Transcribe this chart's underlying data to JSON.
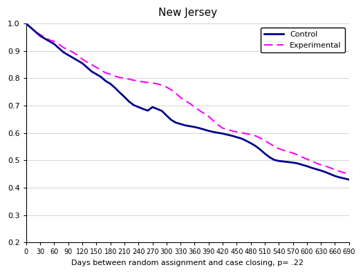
{
  "title": "New Jersey",
  "xlabel": "Days between random assignment and case closing, p= .22",
  "xlim": [
    0,
    690
  ],
  "ylim": [
    0.2,
    1.0
  ],
  "xticks": [
    0,
    30,
    60,
    90,
    120,
    150,
    180,
    210,
    240,
    270,
    300,
    330,
    360,
    390,
    420,
    450,
    480,
    510,
    540,
    570,
    600,
    630,
    660,
    690
  ],
  "yticks": [
    0.2,
    0.3,
    0.4,
    0.5,
    0.6,
    0.7,
    0.8,
    0.9,
    1.0
  ],
  "control_color": "#00008B",
  "experimental_color": "#FF00FF",
  "control_x": [
    0,
    10,
    20,
    30,
    40,
    50,
    60,
    70,
    80,
    90,
    100,
    110,
    120,
    130,
    140,
    150,
    160,
    170,
    180,
    190,
    200,
    210,
    220,
    230,
    240,
    250,
    260,
    270,
    280,
    290,
    300,
    310,
    320,
    330,
    340,
    350,
    360,
    370,
    380,
    390,
    400,
    410,
    420,
    430,
    440,
    450,
    460,
    470,
    480,
    490,
    500,
    510,
    520,
    530,
    540,
    550,
    560,
    570,
    580,
    590,
    600,
    610,
    620,
    630,
    640,
    650,
    660,
    670,
    680,
    690
  ],
  "control_y": [
    1.0,
    0.985,
    0.97,
    0.955,
    0.945,
    0.935,
    0.925,
    0.91,
    0.895,
    0.885,
    0.875,
    0.865,
    0.855,
    0.84,
    0.825,
    0.815,
    0.805,
    0.79,
    0.78,
    0.765,
    0.748,
    0.732,
    0.715,
    0.702,
    0.695,
    0.688,
    0.682,
    0.695,
    0.688,
    0.681,
    0.664,
    0.648,
    0.638,
    0.633,
    0.628,
    0.625,
    0.622,
    0.618,
    0.613,
    0.608,
    0.604,
    0.601,
    0.598,
    0.594,
    0.59,
    0.585,
    0.58,
    0.572,
    0.563,
    0.553,
    0.54,
    0.525,
    0.512,
    0.502,
    0.498,
    0.496,
    0.494,
    0.492,
    0.489,
    0.484,
    0.479,
    0.473,
    0.468,
    0.463,
    0.457,
    0.45,
    0.443,
    0.438,
    0.434,
    0.43
  ],
  "experimental_x": [
    0,
    10,
    20,
    30,
    40,
    50,
    60,
    70,
    80,
    90,
    100,
    110,
    120,
    130,
    140,
    150,
    160,
    170,
    180,
    190,
    200,
    210,
    220,
    230,
    240,
    250,
    260,
    270,
    280,
    290,
    300,
    310,
    320,
    330,
    340,
    350,
    360,
    370,
    380,
    390,
    400,
    410,
    420,
    430,
    440,
    450,
    460,
    470,
    480,
    490,
    500,
    510,
    520,
    530,
    540,
    550,
    560,
    570,
    580,
    590,
    600,
    610,
    620,
    630,
    640,
    650,
    660,
    670,
    680,
    690
  ],
  "experimental_y": [
    1.0,
    0.985,
    0.97,
    0.96,
    0.95,
    0.94,
    0.935,
    0.925,
    0.912,
    0.905,
    0.895,
    0.885,
    0.87,
    0.86,
    0.85,
    0.84,
    0.83,
    0.82,
    0.815,
    0.808,
    0.803,
    0.8,
    0.797,
    0.793,
    0.79,
    0.787,
    0.785,
    0.783,
    0.78,
    0.775,
    0.768,
    0.758,
    0.745,
    0.73,
    0.718,
    0.708,
    0.695,
    0.683,
    0.672,
    0.661,
    0.645,
    0.63,
    0.618,
    0.613,
    0.608,
    0.604,
    0.601,
    0.598,
    0.595,
    0.59,
    0.582,
    0.572,
    0.562,
    0.552,
    0.543,
    0.537,
    0.532,
    0.527,
    0.52,
    0.512,
    0.505,
    0.498,
    0.49,
    0.484,
    0.479,
    0.473,
    0.466,
    0.46,
    0.455,
    0.45
  ]
}
